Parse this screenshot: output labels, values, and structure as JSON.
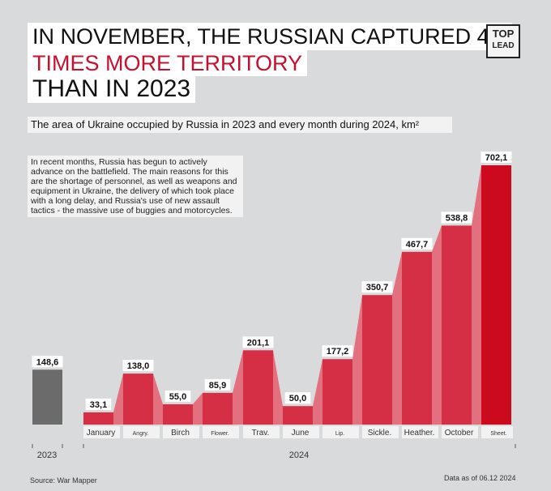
{
  "header": {
    "title_line1": "IN NOVEMBER, THE RUSSIAN CAPTURED 4.7",
    "title_line2": "TIMES MORE TERRITORY",
    "title_line3": "THAN IN 2023",
    "subtitle": "The area of Ukraine occupied by Russia in 2023 and every month during 2024, km²",
    "logo_line1": "TOP",
    "logo_line2": "LEAD"
  },
  "note": "In recent months, Russia has begun to actively advance on the battlefield. The main reasons for this are the shortage of personnel, as well as weapons and equipment in Ukraine, the delivery of which took place with a long delay, and Russia's use of new assault tactics - the massive use of buggies and motorcycles.",
  "footer": {
    "source": "Source: War Mapper",
    "data_as_of": "Data as of 06.12 2024"
  },
  "colors": {
    "bar_2024": "#d52f46",
    "bar_2023": "#6b6b6b",
    "bar_highlight": "#cc0a1e",
    "connector": "#e3707f",
    "background": "#d9dadb"
  },
  "chart_data": {
    "type": "bar",
    "title": "",
    "groups": [
      "2023",
      "2024"
    ],
    "categories": [
      "",
      "January",
      "Angry.",
      "Birch",
      "Flower.",
      "Trav.",
      "June",
      "Lip.",
      "Sickle.",
      "Heather.",
      "October",
      "Sheet."
    ],
    "group_of_category": [
      "2023",
      "2024",
      "2024",
      "2024",
      "2024",
      "2024",
      "2024",
      "2024",
      "2024",
      "2024",
      "2024",
      "2024"
    ],
    "values": [
      148.6,
      33.1,
      138.0,
      55.0,
      85.9,
      201.1,
      50.0,
      177.2,
      350.7,
      467.7,
      538.8,
      702.1
    ],
    "value_labels": [
      "148,6",
      "33,1",
      "138,0",
      "55,0",
      "85,9",
      "201,1",
      "50,0",
      "177,2",
      "350,7",
      "467,7",
      "538,8",
      "702,1"
    ],
    "ylim": [
      0,
      702.1
    ],
    "xlabel": "",
    "ylabel": "",
    "grid": false,
    "highlighted_category": "Sheet."
  }
}
